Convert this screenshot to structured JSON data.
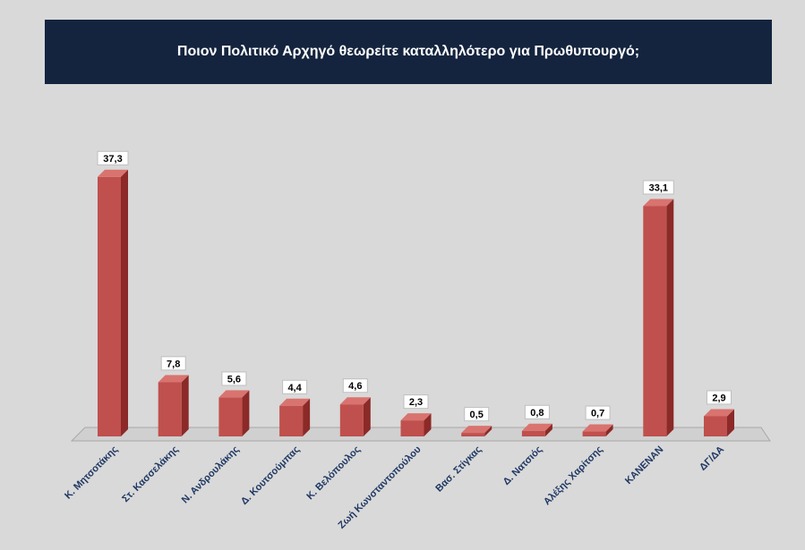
{
  "chart_data": {
    "type": "bar",
    "title": "Ποιον Πολιτικό Αρχηγό θεωρείτε καταλληλότερο για Πρωθυπουργό;",
    "categories": [
      "Κ. Μητσοτάκης",
      "Στ. Κασσελάκης",
      "Ν. Ανδρουλάκης",
      "Δ. Κουτσούμπας",
      "Κ. Βελόπουλος",
      "Ζωή Κωνσταντοπούλου",
      "Βασ. Στίγκας",
      "Δ. Νατσιός",
      "Αλέξης Χαρίτσης",
      "ΚΑΝΕΝΑΝ",
      "ΔΓ/ΔΑ"
    ],
    "values": [
      37.3,
      7.8,
      5.6,
      4.4,
      4.6,
      2.3,
      0.5,
      0.8,
      0.7,
      33.1,
      2.9
    ],
    "data_labels": [
      "37,3",
      "7,8",
      "5,6",
      "4,4",
      "4,6",
      "2,3",
      "0,5",
      "0,8",
      "0,7",
      "33,1",
      "2,9"
    ],
    "xlabel": "",
    "ylabel": "",
    "ylim": [
      0,
      40
    ],
    "grid": false,
    "legend": "none",
    "colors": {
      "bar_front": "#c0504d",
      "bar_side": "#8b2a28",
      "bar_top": "#d9736f",
      "floor": "#d0d0d0",
      "title_bg": "#14243e"
    }
  }
}
